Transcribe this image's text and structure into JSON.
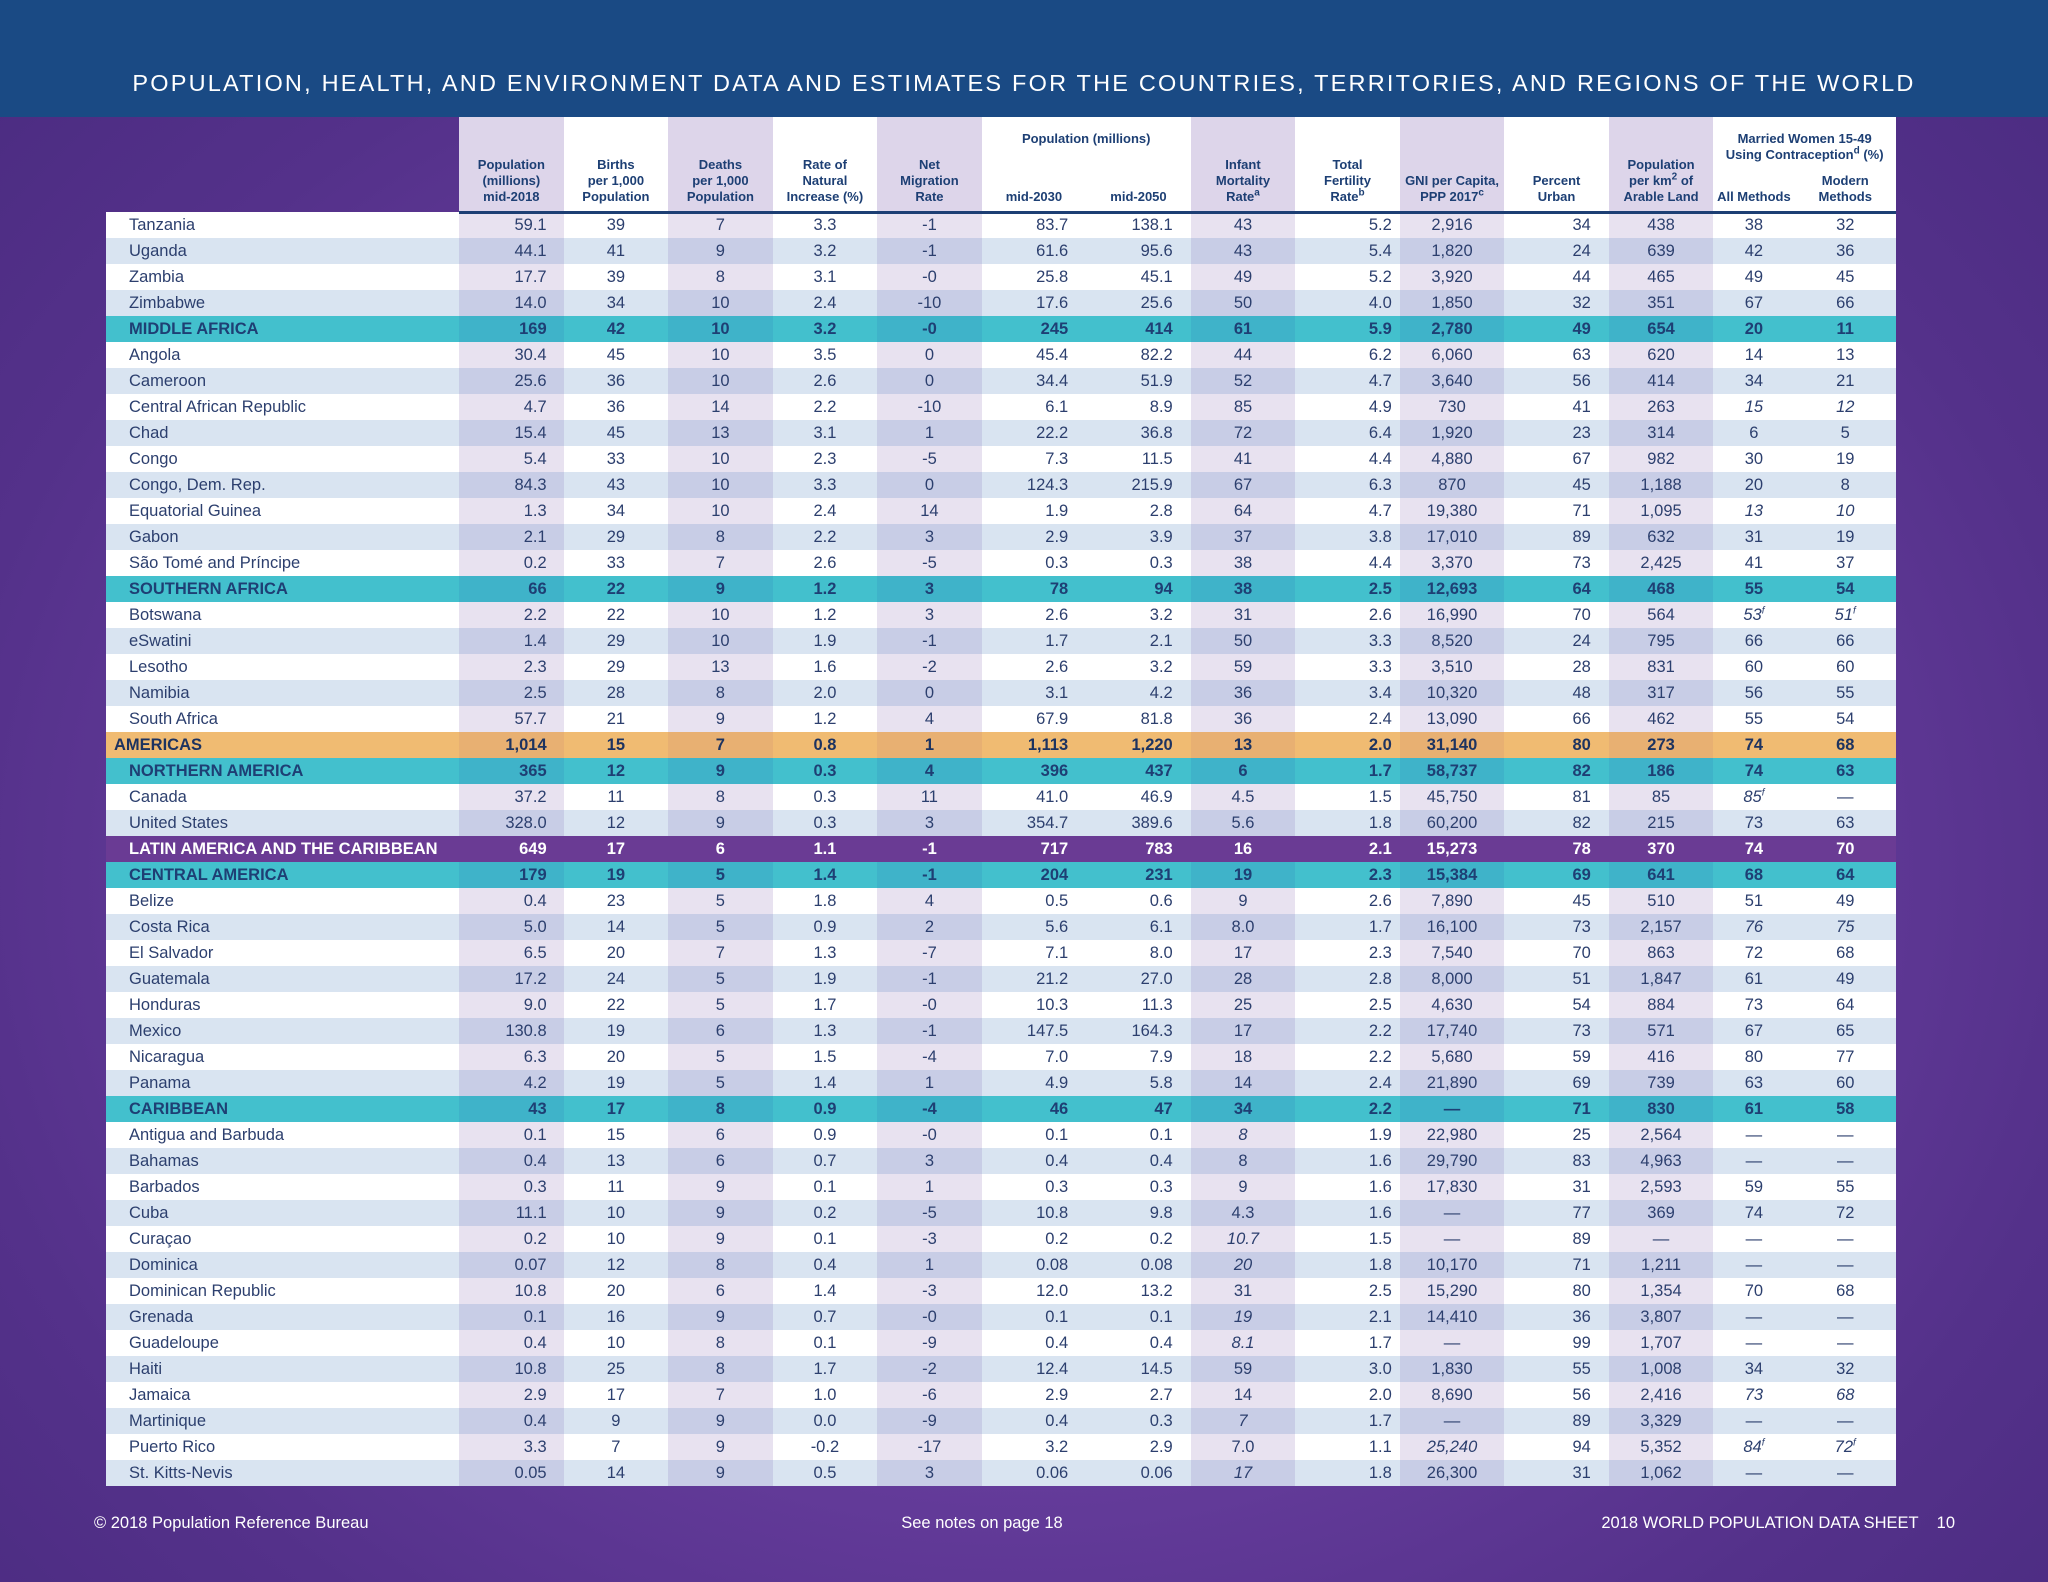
{
  "title": "POPULATION, HEALTH, AND ENVIRONMENT DATA AND ESTIMATES FOR THE COUNTRIES, TERRITORIES, AND REGIONS OF THE WORLD",
  "colors": {
    "header_band": "#1a4a84",
    "region_row": "#43c0cd",
    "world_region_row": "#f0bb72",
    "subregion_row": "#6a3b94",
    "text": "#2c3f6e"
  },
  "headers": {
    "population": [
      "Population",
      "(millions)",
      "mid-2018"
    ],
    "births": [
      "Births",
      "per 1,000",
      "Population"
    ],
    "deaths": [
      "Deaths",
      "per 1,000",
      "Population"
    ],
    "natural_increase": [
      "Rate of",
      "Natural",
      "Increase (%)"
    ],
    "migration": [
      "Net",
      "Migration",
      "Rate"
    ],
    "pop_projection_group": "Population (millions)",
    "mid2030": "mid-2030",
    "mid2050": "mid-2050",
    "infant_mortality": [
      "Infant",
      "Mortality",
      "Rate"
    ],
    "infant_mortality_note": "a",
    "fertility": [
      "Total",
      "Fertility",
      "Rate"
    ],
    "fertility_note": "b",
    "gni": [
      "GNI per Capita,",
      "PPP 2017"
    ],
    "gni_note": "c",
    "urban": [
      "Percent",
      "Urban"
    ],
    "arable": [
      "Population",
      "per km",
      "of",
      "Arable Land"
    ],
    "arable_sup": "2",
    "contraception_group": [
      "Married Women 15-49",
      "Using Contraception",
      " (%)"
    ],
    "contraception_note": "d",
    "all_methods": "All Methods",
    "modern_methods": "Modern Methods"
  },
  "rows": [
    {
      "type": "country",
      "name": "Tanzania",
      "v": [
        "59.1",
        "39",
        "7",
        "3.3",
        "-1",
        "83.7",
        "138.1",
        "43",
        "5.2",
        "2,916",
        "34",
        "438",
        "38",
        "32"
      ]
    },
    {
      "type": "country",
      "name": "Uganda",
      "v": [
        "44.1",
        "41",
        "9",
        "3.2",
        "-1",
        "61.6",
        "95.6",
        "43",
        "5.4",
        "1,820",
        "24",
        "639",
        "42",
        "36"
      ]
    },
    {
      "type": "country",
      "name": "Zambia",
      "v": [
        "17.7",
        "39",
        "8",
        "3.1",
        "-0",
        "25.8",
        "45.1",
        "49",
        "5.2",
        "3,920",
        "44",
        "465",
        "49",
        "45"
      ]
    },
    {
      "type": "country",
      "name": "Zimbabwe",
      "v": [
        "14.0",
        "34",
        "10",
        "2.4",
        "-10",
        "17.6",
        "25.6",
        "50",
        "4.0",
        "1,850",
        "32",
        "351",
        "67",
        "66"
      ]
    },
    {
      "type": "region",
      "name": "MIDDLE AFRICA",
      "v": [
        "169",
        "42",
        "10",
        "3.2",
        "-0",
        "245",
        "414",
        "61",
        "5.9",
        "2,780",
        "49",
        "654",
        "20",
        "11"
      ]
    },
    {
      "type": "country",
      "name": "Angola",
      "v": [
        "30.4",
        "45",
        "10",
        "3.5",
        "0",
        "45.4",
        "82.2",
        "44",
        "6.2",
        "6,060",
        "63",
        "620",
        "14",
        "13"
      ]
    },
    {
      "type": "country",
      "name": "Cameroon",
      "v": [
        "25.6",
        "36",
        "10",
        "2.6",
        "0",
        "34.4",
        "51.9",
        "52",
        "4.7",
        "3,640",
        "56",
        "414",
        "34",
        "21"
      ]
    },
    {
      "type": "country",
      "name": "Central African Republic",
      "v": [
        "4.7",
        "36",
        "14",
        "2.2",
        "-10",
        "6.1",
        "8.9",
        "85",
        "4.9",
        "730",
        "41",
        "263",
        "15",
        "12"
      ],
      "italic": [
        12,
        13
      ]
    },
    {
      "type": "country",
      "name": "Chad",
      "v": [
        "15.4",
        "45",
        "13",
        "3.1",
        "1",
        "22.2",
        "36.8",
        "72",
        "6.4",
        "1,920",
        "23",
        "314",
        "6",
        "5"
      ]
    },
    {
      "type": "country",
      "name": "Congo",
      "v": [
        "5.4",
        "33",
        "10",
        "2.3",
        "-5",
        "7.3",
        "11.5",
        "41",
        "4.4",
        "4,880",
        "67",
        "982",
        "30",
        "19"
      ]
    },
    {
      "type": "country",
      "name": "Congo, Dem. Rep.",
      "v": [
        "84.3",
        "43",
        "10",
        "3.3",
        "0",
        "124.3",
        "215.9",
        "67",
        "6.3",
        "870",
        "45",
        "1,188",
        "20",
        "8"
      ]
    },
    {
      "type": "country",
      "name": "Equatorial Guinea",
      "v": [
        "1.3",
        "34",
        "10",
        "2.4",
        "14",
        "1.9",
        "2.8",
        "64",
        "4.7",
        "19,380",
        "71",
        "1,095",
        "13",
        "10"
      ],
      "italic": [
        12,
        13
      ]
    },
    {
      "type": "country",
      "name": "Gabon",
      "v": [
        "2.1",
        "29",
        "8",
        "2.2",
        "3",
        "2.9",
        "3.9",
        "37",
        "3.8",
        "17,010",
        "89",
        "632",
        "31",
        "19"
      ]
    },
    {
      "type": "country",
      "name": "São Tomé and Príncipe",
      "v": [
        "0.2",
        "33",
        "7",
        "2.6",
        "-5",
        "0.3",
        "0.3",
        "38",
        "4.4",
        "3,370",
        "73",
        "2,425",
        "41",
        "37"
      ]
    },
    {
      "type": "region",
      "name": "SOUTHERN AFRICA",
      "v": [
        "66",
        "22",
        "9",
        "1.2",
        "3",
        "78",
        "94",
        "38",
        "2.5",
        "12,693",
        "64",
        "468",
        "55",
        "54"
      ]
    },
    {
      "type": "country",
      "name": "Botswana",
      "v": [
        "2.2",
        "22",
        "10",
        "1.2",
        "3",
        "2.6",
        "3.2",
        "31",
        "2.6",
        "16,990",
        "70",
        "564",
        "53",
        "51"
      ],
      "italic": [
        12,
        13
      ],
      "sup": {
        "12": "f",
        "13": "f"
      }
    },
    {
      "type": "country",
      "name": "eSwatini",
      "v": [
        "1.4",
        "29",
        "10",
        "1.9",
        "-1",
        "1.7",
        "2.1",
        "50",
        "3.3",
        "8,520",
        "24",
        "795",
        "66",
        "66"
      ]
    },
    {
      "type": "country",
      "name": "Lesotho",
      "v": [
        "2.3",
        "29",
        "13",
        "1.6",
        "-2",
        "2.6",
        "3.2",
        "59",
        "3.3",
        "3,510",
        "28",
        "831",
        "60",
        "60"
      ]
    },
    {
      "type": "country",
      "name": "Namibia",
      "v": [
        "2.5",
        "28",
        "8",
        "2.0",
        "0",
        "3.1",
        "4.2",
        "36",
        "3.4",
        "10,320",
        "48",
        "317",
        "56",
        "55"
      ]
    },
    {
      "type": "country",
      "name": "South Africa",
      "v": [
        "57.7",
        "21",
        "9",
        "1.2",
        "4",
        "67.9",
        "81.8",
        "36",
        "2.4",
        "13,090",
        "66",
        "462",
        "55",
        "54"
      ]
    },
    {
      "type": "world",
      "name": "AMERICAS",
      "v": [
        "1,014",
        "15",
        "7",
        "0.8",
        "1",
        "1,113",
        "1,220",
        "13",
        "2.0",
        "31,140",
        "80",
        "273",
        "74",
        "68"
      ]
    },
    {
      "type": "region",
      "name": "NORTHERN AMERICA",
      "v": [
        "365",
        "12",
        "9",
        "0.3",
        "4",
        "396",
        "437",
        "6",
        "1.7",
        "58,737",
        "82",
        "186",
        "74",
        "63"
      ]
    },
    {
      "type": "country",
      "name": "Canada",
      "v": [
        "37.2",
        "11",
        "8",
        "0.3",
        "11",
        "41.0",
        "46.9",
        "4.5",
        "1.5",
        "45,750",
        "81",
        "85",
        "85",
        "—"
      ],
      "italic": [
        12
      ],
      "sup": {
        "12": "f"
      }
    },
    {
      "type": "country",
      "name": "United States",
      "v": [
        "328.0",
        "12",
        "9",
        "0.3",
        "3",
        "354.7",
        "389.6",
        "5.6",
        "1.8",
        "60,200",
        "82",
        "215",
        "73",
        "63"
      ]
    },
    {
      "type": "sub",
      "name": "LATIN AMERICA AND THE CARIBBEAN",
      "v": [
        "649",
        "17",
        "6",
        "1.1",
        "-1",
        "717",
        "783",
        "16",
        "2.1",
        "15,273",
        "78",
        "370",
        "74",
        "70"
      ]
    },
    {
      "type": "region",
      "name": "CENTRAL AMERICA",
      "v": [
        "179",
        "19",
        "5",
        "1.4",
        "-1",
        "204",
        "231",
        "19",
        "2.3",
        "15,384",
        "69",
        "641",
        "68",
        "64"
      ]
    },
    {
      "type": "country",
      "name": "Belize",
      "v": [
        "0.4",
        "23",
        "5",
        "1.8",
        "4",
        "0.5",
        "0.6",
        "9",
        "2.6",
        "7,890",
        "45",
        "510",
        "51",
        "49"
      ]
    },
    {
      "type": "country",
      "name": "Costa Rica",
      "v": [
        "5.0",
        "14",
        "5",
        "0.9",
        "2",
        "5.6",
        "6.1",
        "8.0",
        "1.7",
        "16,100",
        "73",
        "2,157",
        "76",
        "75"
      ],
      "italic": [
        12,
        13
      ]
    },
    {
      "type": "country",
      "name": "El Salvador",
      "v": [
        "6.5",
        "20",
        "7",
        "1.3",
        "-7",
        "7.1",
        "8.0",
        "17",
        "2.3",
        "7,540",
        "70",
        "863",
        "72",
        "68"
      ]
    },
    {
      "type": "country",
      "name": "Guatemala",
      "v": [
        "17.2",
        "24",
        "5",
        "1.9",
        "-1",
        "21.2",
        "27.0",
        "28",
        "2.8",
        "8,000",
        "51",
        "1,847",
        "61",
        "49"
      ]
    },
    {
      "type": "country",
      "name": "Honduras",
      "v": [
        "9.0",
        "22",
        "5",
        "1.7",
        "-0",
        "10.3",
        "11.3",
        "25",
        "2.5",
        "4,630",
        "54",
        "884",
        "73",
        "64"
      ]
    },
    {
      "type": "country",
      "name": "Mexico",
      "v": [
        "130.8",
        "19",
        "6",
        "1.3",
        "-1",
        "147.5",
        "164.3",
        "17",
        "2.2",
        "17,740",
        "73",
        "571",
        "67",
        "65"
      ]
    },
    {
      "type": "country",
      "name": "Nicaragua",
      "v": [
        "6.3",
        "20",
        "5",
        "1.5",
        "-4",
        "7.0",
        "7.9",
        "18",
        "2.2",
        "5,680",
        "59",
        "416",
        "80",
        "77"
      ]
    },
    {
      "type": "country",
      "name": "Panama",
      "v": [
        "4.2",
        "19",
        "5",
        "1.4",
        "1",
        "4.9",
        "5.8",
        "14",
        "2.4",
        "21,890",
        "69",
        "739",
        "63",
        "60"
      ]
    },
    {
      "type": "region",
      "name": "CARIBBEAN",
      "v": [
        "43",
        "17",
        "8",
        "0.9",
        "-4",
        "46",
        "47",
        "34",
        "2.2",
        "—",
        "71",
        "830",
        "61",
        "58"
      ]
    },
    {
      "type": "country",
      "name": "Antigua and Barbuda",
      "v": [
        "0.1",
        "15",
        "6",
        "0.9",
        "-0",
        "0.1",
        "0.1",
        "8",
        "1.9",
        "22,980",
        "25",
        "2,564",
        "—",
        "—"
      ],
      "italic": [
        7
      ]
    },
    {
      "type": "country",
      "name": "Bahamas",
      "v": [
        "0.4",
        "13",
        "6",
        "0.7",
        "3",
        "0.4",
        "0.4",
        "8",
        "1.6",
        "29,790",
        "83",
        "4,963",
        "—",
        "—"
      ]
    },
    {
      "type": "country",
      "name": "Barbados",
      "v": [
        "0.3",
        "11",
        "9",
        "0.1",
        "1",
        "0.3",
        "0.3",
        "9",
        "1.6",
        "17,830",
        "31",
        "2,593",
        "59",
        "55"
      ]
    },
    {
      "type": "country",
      "name": "Cuba",
      "v": [
        "11.1",
        "10",
        "9",
        "0.2",
        "-5",
        "10.8",
        "9.8",
        "4.3",
        "1.6",
        "—",
        "77",
        "369",
        "74",
        "72"
      ]
    },
    {
      "type": "country",
      "name": "Curaçao",
      "v": [
        "0.2",
        "10",
        "9",
        "0.1",
        "-3",
        "0.2",
        "0.2",
        "10.7",
        "1.5",
        "—",
        "89",
        "—",
        "—",
        "—"
      ],
      "italic": [
        7
      ]
    },
    {
      "type": "country",
      "name": "Dominica",
      "v": [
        "0.07",
        "12",
        "8",
        "0.4",
        "1",
        "0.08",
        "0.08",
        "20",
        "1.8",
        "10,170",
        "71",
        "1,211",
        "—",
        "—"
      ],
      "italic": [
        7
      ]
    },
    {
      "type": "country",
      "name": "Dominican Republic",
      "v": [
        "10.8",
        "20",
        "6",
        "1.4",
        "-3",
        "12.0",
        "13.2",
        "31",
        "2.5",
        "15,290",
        "80",
        "1,354",
        "70",
        "68"
      ]
    },
    {
      "type": "country",
      "name": "Grenada",
      "v": [
        "0.1",
        "16",
        "9",
        "0.7",
        "-0",
        "0.1",
        "0.1",
        "19",
        "2.1",
        "14,410",
        "36",
        "3,807",
        "—",
        "—"
      ],
      "italic": [
        7
      ]
    },
    {
      "type": "country",
      "name": "Guadeloupe",
      "v": [
        "0.4",
        "10",
        "8",
        "0.1",
        "-9",
        "0.4",
        "0.4",
        "8.1",
        "1.7",
        "—",
        "99",
        "1,707",
        "—",
        "—"
      ],
      "italic": [
        7
      ]
    },
    {
      "type": "country",
      "name": "Haiti",
      "v": [
        "10.8",
        "25",
        "8",
        "1.7",
        "-2",
        "12.4",
        "14.5",
        "59",
        "3.0",
        "1,830",
        "55",
        "1,008",
        "34",
        "32"
      ]
    },
    {
      "type": "country",
      "name": "Jamaica",
      "v": [
        "2.9",
        "17",
        "7",
        "1.0",
        "-6",
        "2.9",
        "2.7",
        "14",
        "2.0",
        "8,690",
        "56",
        "2,416",
        "73",
        "68"
      ],
      "italic": [
        12,
        13
      ]
    },
    {
      "type": "country",
      "name": "Martinique",
      "v": [
        "0.4",
        "9",
        "9",
        "0.0",
        "-9",
        "0.4",
        "0.3",
        "7",
        "1.7",
        "—",
        "89",
        "3,329",
        "—",
        "—"
      ],
      "italic": [
        7
      ]
    },
    {
      "type": "country",
      "name": "Puerto Rico",
      "v": [
        "3.3",
        "7",
        "9",
        "-0.2",
        "-17",
        "3.2",
        "2.9",
        "7.0",
        "1.1",
        "25,240",
        "94",
        "5,352",
        "84",
        "72"
      ],
      "italic": [
        9,
        12,
        13
      ],
      "sup": {
        "12": "f",
        "13": "f"
      }
    },
    {
      "type": "country",
      "name": "St. Kitts-Nevis",
      "v": [
        "0.05",
        "14",
        "9",
        "0.5",
        "3",
        "0.06",
        "0.06",
        "17",
        "1.8",
        "26,300",
        "31",
        "1,062",
        "—",
        "—"
      ],
      "italic": [
        7
      ]
    }
  ],
  "footer": {
    "left": "© 2018 Population Reference Bureau",
    "center": "See notes on page 18",
    "right": "2018 WORLD POPULATION DATA SHEET    10"
  }
}
